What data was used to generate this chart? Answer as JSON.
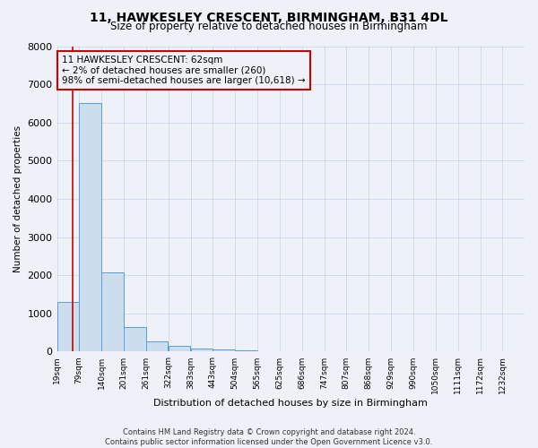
{
  "title": "11, HAWKESLEY CRESCENT, BIRMINGHAM, B31 4DL",
  "subtitle": "Size of property relative to detached houses in Birmingham",
  "xlabel": "Distribution of detached houses by size in Birmingham",
  "ylabel": "Number of detached properties",
  "annotation_lines": [
    "11 HAWKESLEY CRESCENT: 62sqm",
    "← 2% of detached houses are smaller (260)",
    "98% of semi-detached houses are larger (10,618) →"
  ],
  "footer_lines": [
    "Contains HM Land Registry data © Crown copyright and database right 2024.",
    "Contains public sector information licensed under the Open Government Licence v3.0."
  ],
  "bin_labels": [
    "19sqm",
    "79sqm",
    "140sqm",
    "201sqm",
    "261sqm",
    "322sqm",
    "383sqm",
    "443sqm",
    "504sqm",
    "565sqm",
    "625sqm",
    "686sqm",
    "747sqm",
    "807sqm",
    "868sqm",
    "929sqm",
    "990sqm",
    "1050sqm",
    "1111sqm",
    "1172sqm",
    "1232sqm"
  ],
  "bin_edges": [
    19,
    79,
    140,
    201,
    261,
    322,
    383,
    443,
    504,
    565,
    625,
    686,
    747,
    807,
    868,
    929,
    990,
    1050,
    1111,
    1172,
    1232
  ],
  "bar_heights": [
    1300,
    6500,
    2080,
    650,
    280,
    140,
    90,
    60,
    30,
    0,
    0,
    0,
    0,
    0,
    0,
    0,
    0,
    0,
    0,
    0
  ],
  "bar_color": "#ccdded",
  "bar_edge_color": "#5b9bd5",
  "property_size": 62,
  "red_line_color": "#cc0000",
  "ylim": [
    0,
    8000
  ],
  "yticks": [
    0,
    1000,
    2000,
    3000,
    4000,
    5000,
    6000,
    7000,
    8000
  ],
  "grid_color": "#ccd8ea",
  "background_color": "#eef2f8"
}
